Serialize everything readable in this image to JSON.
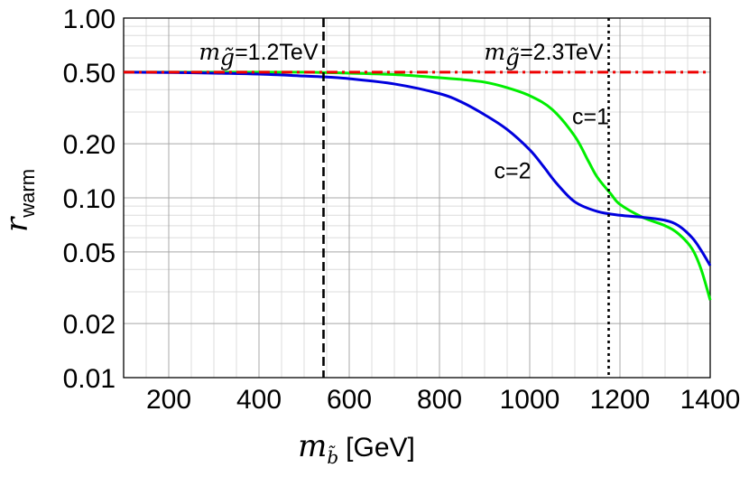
{
  "chart_data": {
    "type": "line",
    "title": "",
    "x_axis": {
      "label_main": "m",
      "label_sub": "b̃",
      "label_unit": "[GeV]",
      "range": [
        100,
        1400
      ],
      "ticks": [
        200,
        400,
        600,
        800,
        1000,
        1200,
        1400
      ],
      "minor_step": 50
    },
    "y_axis": {
      "label_main": "r",
      "label_sub": "warm",
      "scale": "log",
      "range": [
        0.01,
        1.0
      ],
      "ticks": [
        0.01,
        0.02,
        0.05,
        0.1,
        0.2,
        0.5,
        1.0
      ],
      "tick_labels": [
        "0.01",
        "0.02",
        "0.05",
        "0.10",
        "0.20",
        "0.50",
        "1.00"
      ],
      "minor_grid": [
        0.03,
        0.04,
        0.06,
        0.07,
        0.08,
        0.09,
        0.3,
        0.4,
        0.6,
        0.7,
        0.8,
        0.9
      ]
    },
    "grid": true,
    "series": [
      {
        "name": "c=1",
        "color": "#00ee00",
        "style": "solid",
        "x": [
          100,
          200,
          300,
          400,
          500,
          600,
          700,
          800,
          850,
          900,
          950,
          1000,
          1050,
          1100,
          1130,
          1150,
          1180,
          1200,
          1250,
          1300,
          1330,
          1360,
          1380,
          1400
        ],
        "y": [
          0.5,
          0.5,
          0.5,
          0.5,
          0.5,
          0.494,
          0.485,
          0.466,
          0.455,
          0.44,
          0.41,
          0.37,
          0.31,
          0.22,
          0.16,
          0.13,
          0.105,
          0.092,
          0.078,
          0.07,
          0.063,
          0.052,
          0.04,
          0.027
        ]
      },
      {
        "name": "c=2",
        "color": "#0000dd",
        "style": "solid",
        "x": [
          100,
          200,
          300,
          400,
          500,
          550,
          600,
          700,
          800,
          850,
          900,
          950,
          1000,
          1030,
          1060,
          1100,
          1150,
          1200,
          1250,
          1300,
          1330,
          1360,
          1380,
          1400
        ],
        "y": [
          0.5,
          0.498,
          0.494,
          0.488,
          0.476,
          0.47,
          0.46,
          0.43,
          0.38,
          0.34,
          0.29,
          0.24,
          0.185,
          0.15,
          0.12,
          0.095,
          0.084,
          0.08,
          0.078,
          0.075,
          0.07,
          0.06,
          0.051,
          0.042
        ]
      },
      {
        "name": "",
        "color": "#ee0000",
        "style": "dashdot",
        "x": [
          100,
          1400
        ],
        "y": [
          0.5,
          0.5
        ]
      }
    ],
    "vertical_lines": [
      {
        "x": 543,
        "style": "dashed",
        "label_main": "m",
        "label_sub": "g̃",
        "label_rest": "=1.2TeV"
      },
      {
        "x": 1175,
        "style": "dotted",
        "label_main": "m",
        "label_sub": "g̃",
        "label_rest": "=2.3TeV"
      }
    ],
    "annotations": [
      {
        "text": "c=1",
        "x": 1135,
        "y": 0.285
      },
      {
        "text": "c=2",
        "x": 962,
        "y": 0.142
      }
    ]
  }
}
